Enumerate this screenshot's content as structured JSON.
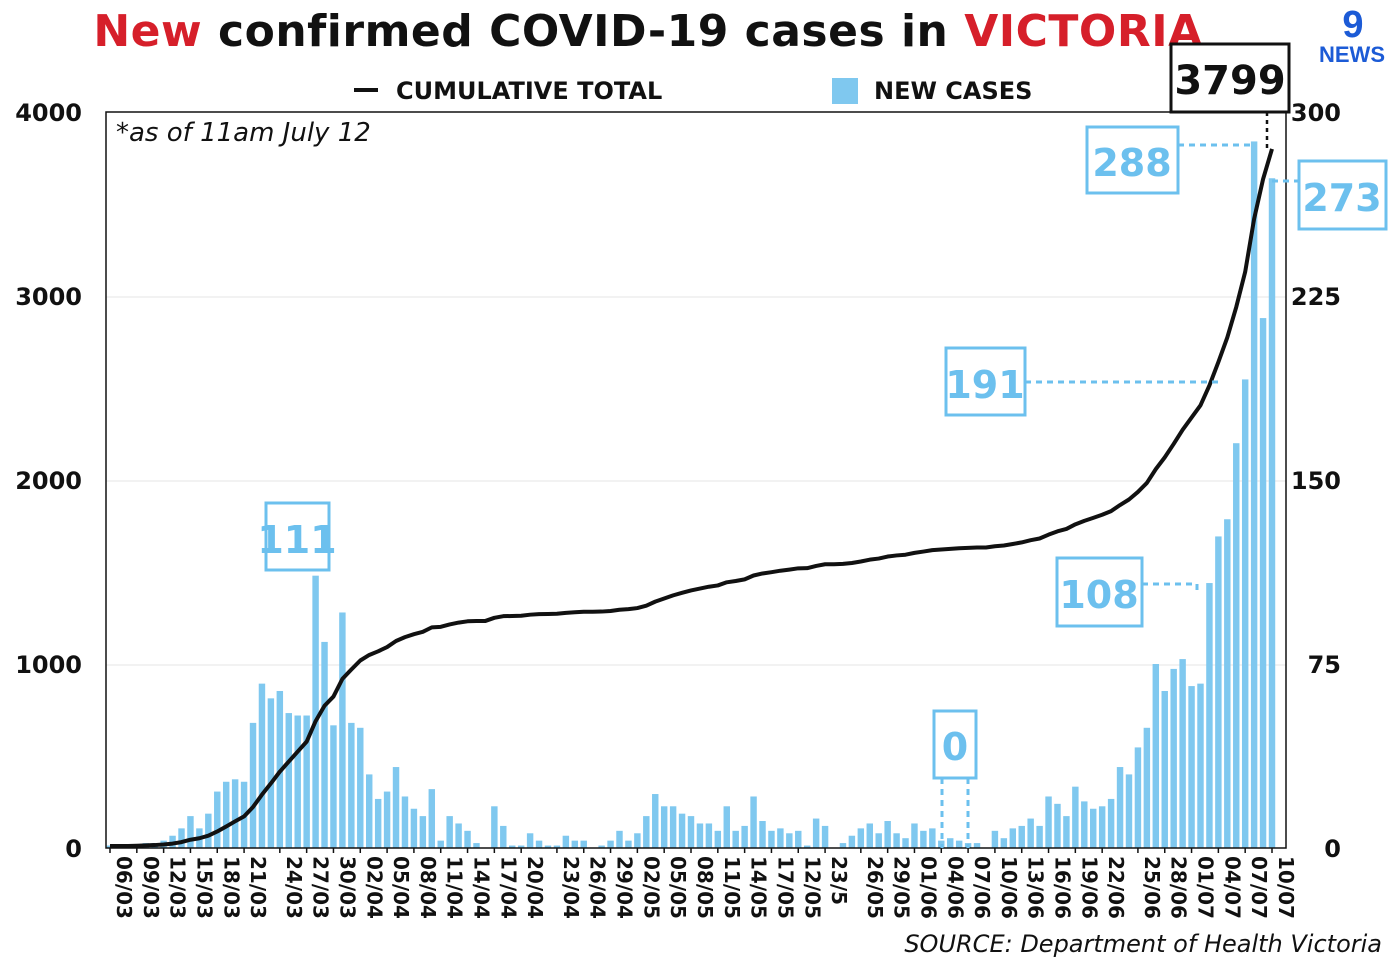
{
  "header": {
    "title_part1": "New",
    "title_part2": " confirmed COVID-19 cases in ",
    "title_part3": "VICTORIA"
  },
  "logo": {
    "line1": "9",
    "line2": "NEWS"
  },
  "note": "*as of 11am July 12",
  "source": "SOURCE: Department of Health Victoria",
  "colors": {
    "bar": "#7fc8ef",
    "line": "#111111",
    "accent_red": "#d61f2a",
    "callout": "#6cc0ee",
    "logo": "#1c5bd6"
  },
  "chart_data": {
    "type": "bar",
    "legend": [
      {
        "label": "CUMULATIVE TOTAL",
        "kind": "line"
      },
      {
        "label": "NEW CASES",
        "kind": "bar"
      }
    ],
    "legend_position": "top-center",
    "y_left": {
      "ticks": [
        "0",
        "1000",
        "2000",
        "3000",
        "4000"
      ],
      "ylim": [
        0,
        4000
      ]
    },
    "y_right": {
      "ticks": [
        "0",
        "75",
        "150",
        "225",
        "300"
      ],
      "ylim": [
        0,
        300
      ]
    },
    "x_ticks": [
      "06/03",
      "09/03",
      "12/03",
      "15/03",
      "18/03",
      "21/03",
      "24/03",
      "27/03",
      "30/03",
      "02/04",
      "05/04",
      "08/04",
      "11/04",
      "14/04",
      "17/04",
      "20/04",
      "23/04",
      "26/04",
      "29/04",
      "02/05",
      "05/05",
      "08/05",
      "11/05",
      "14/05",
      "17/05",
      "12/05",
      "23/5",
      "26/05",
      "29/05",
      "01/06",
      "04/06",
      "07/06",
      "10/06",
      "13/06",
      "16/06",
      "19/06",
      "22/06",
      "25/06",
      "28/06",
      "01/07",
      "04/07",
      "07/07",
      "10/07"
    ],
    "new_cases": [
      1,
      1,
      1,
      1,
      2,
      2,
      3,
      5,
      8,
      13,
      8,
      14,
      23,
      27,
      28,
      27,
      51,
      67,
      61,
      64,
      55,
      54,
      54,
      111,
      84,
      50,
      96,
      51,
      49,
      30,
      20,
      23,
      33,
      21,
      16,
      13,
      24,
      3,
      13,
      10,
      7,
      2,
      0,
      17,
      9,
      1,
      1,
      6,
      3,
      1,
      1,
      5,
      3,
      3,
      0,
      1,
      3,
      7,
      3,
      6,
      13,
      22,
      17,
      17,
      14,
      13,
      10,
      10,
      7,
      17,
      7,
      9,
      21,
      11,
      7,
      8,
      6,
      7,
      1,
      12,
      9,
      0,
      2,
      5,
      8,
      10,
      6,
      11,
      6,
      4,
      10,
      7,
      8,
      3,
      4,
      3,
      2,
      2,
      0,
      7,
      4,
      8,
      9,
      12,
      9,
      21,
      18,
      13,
      25,
      19,
      16,
      17,
      20,
      33,
      30,
      41,
      49,
      75,
      64,
      73,
      77,
      66,
      67,
      108,
      127,
      134,
      165,
      191,
      288,
      216,
      273
    ],
    "cumulative": [
      11,
      11,
      11,
      12,
      14,
      16,
      19,
      24,
      32,
      45,
      53,
      67,
      90,
      117,
      145,
      172,
      223,
      290,
      351,
      415,
      470,
      524,
      578,
      689,
      773,
      823,
      919,
      970,
      1019,
      1049,
      1069,
      1092,
      1125,
      1146,
      1162,
      1175,
      1199,
      1202,
      1215,
      1225,
      1232,
      1234,
      1234,
      1251,
      1260,
      1261,
      1262,
      1268,
      1271,
      1272,
      1273,
      1278,
      1281,
      1284,
      1284,
      1285,
      1288,
      1295,
      1298,
      1304,
      1317,
      1339,
      1356,
      1373,
      1387,
      1400,
      1410,
      1420,
      1427,
      1444,
      1451,
      1460,
      1481,
      1492,
      1499,
      1507,
      1513,
      1520,
      1521,
      1533,
      1542,
      1542,
      1544,
      1549,
      1557,
      1567,
      1573,
      1584,
      1590,
      1594,
      1604,
      1611,
      1619,
      1622,
      1626,
      1629,
      1631,
      1633,
      1633,
      1640,
      1644,
      1652,
      1661,
      1673,
      1682,
      1703,
      1721,
      1734,
      1759,
      1778,
      1794,
      1811,
      1831,
      1864,
      1894,
      1935,
      1984,
      2059,
      2123,
      2196,
      2273,
      2339,
      2406,
      2514,
      2641,
      2775,
      2940,
      3131,
      3419,
      3635,
      3799
    ]
  },
  "callouts": {
    "c111": "111",
    "c288": "288",
    "c273": "273",
    "c191": "191",
    "c108": "108",
    "c0": "0",
    "total": "3799"
  }
}
